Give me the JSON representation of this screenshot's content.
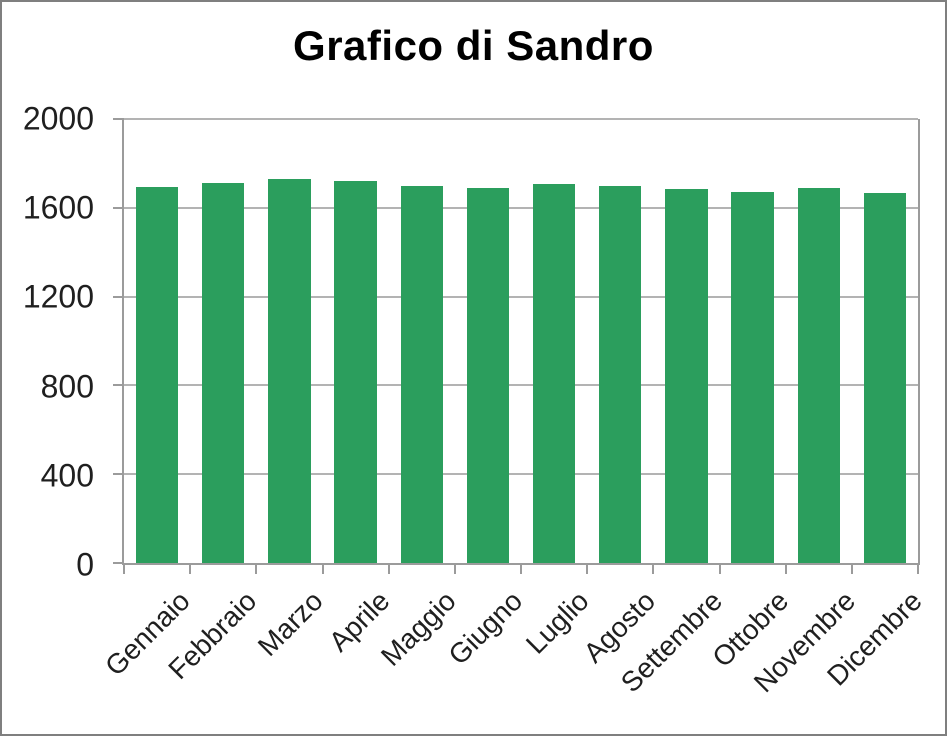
{
  "chart_data": {
    "type": "bar",
    "title": "Grafico di Sandro",
    "categories": [
      "Gennaio",
      "Febbraio",
      "Marzo",
      "Aprile",
      "Maggio",
      "Giugno",
      "Luglio",
      "Agosto",
      "Settembre",
      "Ottobre",
      "Novembre",
      "Dicembre"
    ],
    "values": [
      1695,
      1712,
      1730,
      1720,
      1698,
      1690,
      1708,
      1698,
      1685,
      1672,
      1688,
      1665
    ],
    "xlabel": "",
    "ylabel": "",
    "ylim": [
      0,
      2000
    ],
    "yticks": [
      0,
      400,
      800,
      1200,
      1600,
      2000
    ],
    "grid": "horizontal",
    "legend": "none",
    "colors": {
      "bar": "#2b9e5d",
      "gridline": "#b3b3b3",
      "axis": "#9b9b9b",
      "frame_border": "#7f7f7f",
      "title": "#000000",
      "tick_label": "#1f1f1f",
      "background": "#ffffff"
    }
  }
}
